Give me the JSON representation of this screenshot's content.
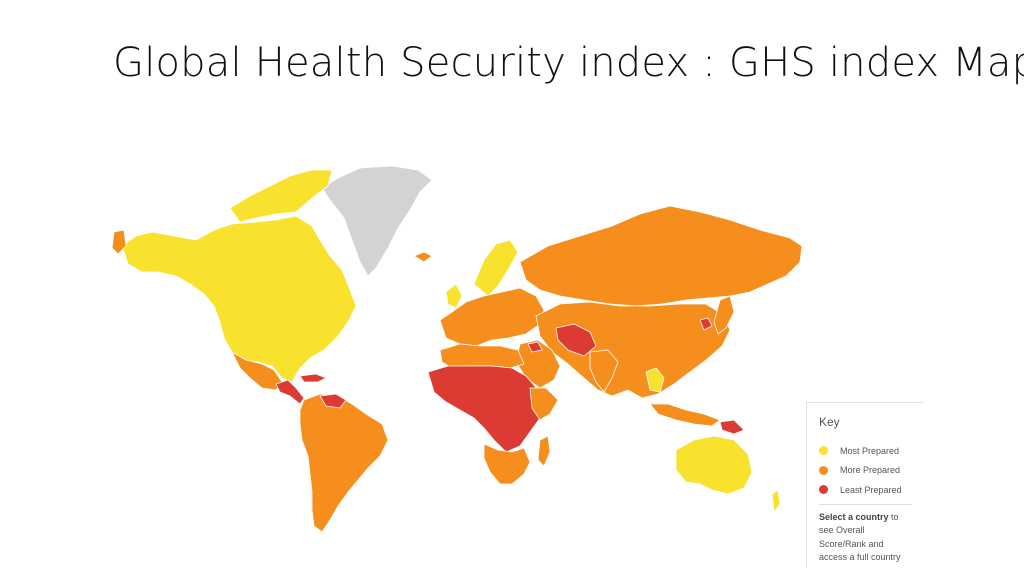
{
  "title": "Global Health Security index : GHS index Map",
  "colors": {
    "most_prepared": "#F9E22D",
    "more_prepared": "#F58E1D",
    "least_prepared": "#DC3B33",
    "no_data": "#D3D3D3",
    "border": "#ffffff"
  },
  "legend": {
    "title": "Key",
    "items": [
      {
        "label": "Most Prepared",
        "color": "#F9E22D"
      },
      {
        "label": "More Prepared",
        "color": "#F58E1D"
      },
      {
        "label": "Least Prepared",
        "color": "#DC3B33"
      }
    ],
    "note_bold": "Select a country",
    "note_rest": " to see Overall Score/Rank and access a full country page."
  }
}
